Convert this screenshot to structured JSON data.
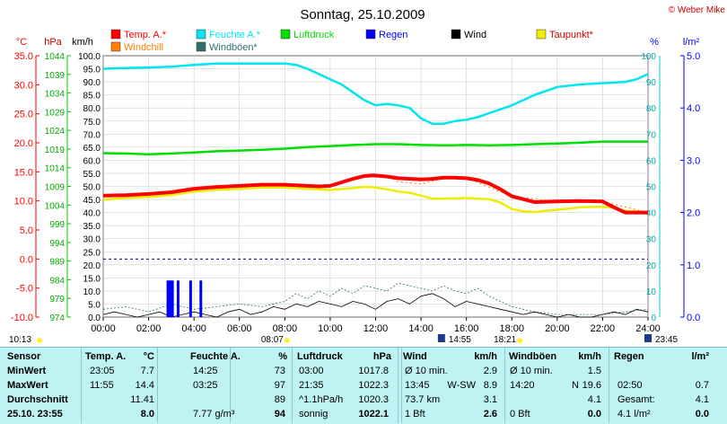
{
  "title": "Sonntag, 25.10.2009",
  "copyright": "© Weber Mike",
  "colors": {
    "temp": "#ff0000",
    "humidity": "#00e5ee",
    "pressure": "#00dd00",
    "rain": "#0000ff",
    "wind": "#000000",
    "dewpoint": "#eeee00",
    "windchill": "#ff7f00",
    "gust": "#2f6f6f"
  },
  "legend": [
    {
      "label": "Temp. A.*",
      "color": "#ff0000"
    },
    {
      "label": "Feuchte A.*",
      "color": "#00e5ee"
    },
    {
      "label": "Luftdruck",
      "color": "#00dd00"
    },
    {
      "label": "Regen",
      "color": "#0000ff"
    },
    {
      "label": "Wind",
      "color": "#000000"
    },
    {
      "label": "Taupunkt*",
      "color": "#eeee00"
    },
    {
      "label": "Windchill",
      "color": "#ff7f00"
    },
    {
      "label": "Windböen*",
      "color": "#2f6f6f"
    }
  ],
  "chart_data": {
    "type": "line",
    "title": "Sonntag, 25.10.2009",
    "x_ticks": [
      "00:00",
      "02:00",
      "04:00",
      "06:00",
      "08:00",
      "10:00",
      "12:00",
      "14:00",
      "16:00",
      "18:00",
      "20:00",
      "22:00",
      "24:00"
    ],
    "axes": {
      "celsius": {
        "unit": "°C",
        "ylim": [
          -10,
          35
        ],
        "ticks": [
          "35.0",
          "30.0",
          "25.0",
          "20.0",
          "15.0",
          "10.0",
          "5.0",
          "0.0",
          "-5.0",
          "-10.0"
        ]
      },
      "hpa": {
        "unit": "hPa",
        "ylim": [
          974,
          1044
        ],
        "ticks": [
          "1044",
          "1039",
          "1034",
          "1029",
          "1024",
          "1019",
          "1014",
          "1009",
          "1004",
          "999",
          "994",
          "989",
          "984",
          "979",
          "974"
        ]
      },
      "kmh": {
        "unit": "km/h",
        "ylim": [
          0,
          100
        ],
        "ticks": [
          "100.0",
          "95.0",
          "90.0",
          "85.0",
          "80.0",
          "75.0",
          "70.0",
          "65.0",
          "60.0",
          "55.0",
          "50.0",
          "45.0",
          "40.0",
          "35.0",
          "30.0",
          "25.0",
          "20.0",
          "15.0",
          "10.0",
          "5.0",
          "0.0"
        ]
      },
      "percent": {
        "unit": "%",
        "ylim": [
          0,
          100
        ],
        "ticks": [
          "100",
          "90",
          "80",
          "70",
          "60",
          "50",
          "40",
          "30",
          "20",
          "10",
          "0"
        ]
      },
      "rain": {
        "unit": "l/m²",
        "ylim": [
          0,
          5
        ],
        "ticks": [
          "5.0",
          "4.0",
          "3.0",
          "2.0",
          "1.0",
          "0.0"
        ]
      }
    },
    "series": [
      {
        "name": "Temp. A.*",
        "axis": "celsius",
        "x": [
          0,
          1,
          2,
          3,
          4,
          5,
          6,
          7,
          8,
          9,
          9.5,
          10,
          10.5,
          11,
          11.5,
          11.9,
          12.5,
          13,
          14,
          14.5,
          15,
          15.5,
          16,
          16.5,
          17,
          17.5,
          18,
          18.5,
          19,
          20,
          21,
          22,
          22.5,
          23,
          24
        ],
        "y": [
          10.9,
          11.0,
          11.2,
          11.5,
          12.1,
          12.4,
          12.6,
          12.8,
          12.8,
          12.6,
          12.5,
          12.6,
          13.2,
          13.8,
          14.3,
          14.4,
          14.2,
          13.9,
          13.7,
          13.8,
          14.0,
          14.0,
          13.9,
          13.6,
          13.0,
          12.0,
          10.8,
          10.3,
          9.8,
          9.9,
          10.0,
          9.9,
          8.9,
          8.0,
          8.0
        ]
      },
      {
        "name": "Feuchte A.*",
        "axis": "percent",
        "x": [
          0,
          1,
          2,
          3,
          4,
          5,
          6,
          7,
          8,
          8.5,
          9,
          10,
          10.5,
          11,
          11.5,
          12,
          12.5,
          13,
          13.5,
          14,
          14.5,
          15,
          15.5,
          16,
          16.5,
          17,
          17.5,
          18,
          18.5,
          19,
          20,
          21,
          22,
          23,
          23.5,
          24
        ],
        "y": [
          95,
          95.3,
          95.5,
          95.8,
          96.5,
          97,
          97,
          97,
          97,
          96.5,
          95,
          91,
          89,
          86,
          83,
          81,
          81.5,
          81,
          80,
          76,
          74,
          74,
          75,
          75.5,
          76.5,
          78,
          79.5,
          81,
          83,
          85,
          88,
          89,
          89.5,
          90,
          91,
          93
        ]
      },
      {
        "name": "Luftdruck",
        "axis": "hpa",
        "x": [
          0,
          1,
          2,
          3,
          4,
          5,
          6,
          7,
          8,
          9,
          10,
          11,
          12,
          13,
          14,
          15,
          16,
          17,
          18,
          19,
          20,
          21,
          22,
          23,
          24
        ],
        "y": [
          1017.9,
          1017.8,
          1017.6,
          1017.8,
          1018.1,
          1018.4,
          1018.6,
          1018.8,
          1019.1,
          1019.5,
          1019.8,
          1020.1,
          1020.3,
          1020.3,
          1020.1,
          1020.0,
          1020.1,
          1020.0,
          1020.1,
          1020.3,
          1020.5,
          1020.7,
          1021.0,
          1021.0,
          1021.0
        ]
      },
      {
        "name": "Taupunkt*",
        "axis": "celsius",
        "x": [
          0,
          1,
          2,
          3,
          4,
          5,
          6,
          7,
          8,
          9,
          10,
          11,
          11.5,
          12,
          12.5,
          13,
          13.5,
          14,
          14.5,
          15,
          16,
          17,
          17.5,
          18,
          18.5,
          19,
          20,
          21,
          22,
          22.5,
          23,
          24
        ],
        "y": [
          10.2,
          10.5,
          10.7,
          11.0,
          11.6,
          11.9,
          12.1,
          12.3,
          12.3,
          12.1,
          11.9,
          12.2,
          12.4,
          12.3,
          12.0,
          11.6,
          11.4,
          10.9,
          10.4,
          10.4,
          10.5,
          10.3,
          9.7,
          8.6,
          8.2,
          8.1,
          8.5,
          8.9,
          9.0,
          8.8,
          8.3,
          8.1
        ]
      },
      {
        "name": "Windchill",
        "axis": "celsius",
        "x": [
          0,
          2,
          4,
          6,
          8,
          10,
          11.9,
          12.5,
          13,
          14,
          15,
          16,
          18,
          20,
          22,
          24
        ],
        "y": [
          10.9,
          11.2,
          12.1,
          12.6,
          12.8,
          12.6,
          14.4,
          14.2,
          13.3,
          12.9,
          13.9,
          13.9,
          10.8,
          9.9,
          9.9,
          8.0
        ]
      },
      {
        "name": "Wind",
        "axis": "kmh",
        "x": [
          0,
          0.5,
          1,
          1.5,
          2,
          2.5,
          3,
          3.5,
          4,
          4.5,
          5,
          5.5,
          6,
          6.5,
          7,
          7.5,
          8,
          8.5,
          9,
          9.5,
          10,
          10.5,
          11,
          11.5,
          12,
          12.5,
          13,
          13.5,
          14,
          14.5,
          15,
          15.5,
          16,
          16.5,
          17,
          17.5,
          18,
          18.5,
          19,
          19.5,
          20,
          20.5,
          21,
          21.5,
          22,
          22.5,
          23,
          23.5,
          24
        ],
        "y": [
          1,
          2,
          1,
          0,
          1,
          2,
          0,
          1,
          2,
          1,
          0,
          2,
          3,
          1,
          2,
          4,
          3,
          5,
          4,
          6,
          5,
          4,
          6,
          5,
          3,
          6,
          7,
          5,
          8,
          9,
          7,
          4,
          6,
          5,
          4,
          3,
          2,
          1,
          2,
          1,
          0,
          1,
          0,
          0,
          1,
          2,
          1,
          3,
          2
        ]
      },
      {
        "name": "Windböen*",
        "axis": "kmh",
        "x": [
          0,
          1,
          2,
          3,
          4,
          5,
          6,
          7,
          8,
          8.5,
          9,
          9.5,
          10,
          10.5,
          11,
          11.5,
          12,
          12.5,
          13,
          13.5,
          14,
          14.5,
          15,
          15.5,
          16,
          16.5,
          17,
          17.5,
          18,
          18.5,
          19,
          20,
          21,
          22,
          23,
          24
        ],
        "y": [
          3,
          4,
          2,
          5,
          3,
          4,
          5,
          4,
          6,
          9,
          7,
          10,
          8,
          11,
          9,
          12,
          11,
          10,
          13,
          12,
          11,
          10,
          12,
          10,
          9,
          11,
          8,
          6,
          4,
          3,
          2,
          1,
          1,
          1,
          2,
          3
        ]
      },
      {
        "name": "Regen",
        "axis": "rain",
        "type": "bar",
        "x": [
          2.85,
          2.95,
          3.05,
          3.3,
          3.85,
          4.3
        ],
        "y": [
          0.7,
          0.7,
          0.7,
          0.7,
          0.7,
          0.7
        ]
      }
    ],
    "reference_line": {
      "axis": "celsius",
      "value": 0.0,
      "style": "dashed",
      "color": "#0000aa"
    },
    "markers": [
      {
        "label": "10:13",
        "x": 0
      },
      {
        "label": "08:07",
        "x": 8.1
      },
      {
        "label": "14:55",
        "x": 14.9
      },
      {
        "label": "18:21",
        "x": 18.35
      },
      {
        "label": "23:45",
        "x": 24
      }
    ]
  },
  "table": {
    "rows": [
      {
        "label": "Sensor",
        "temp_unit": "°C",
        "hum_unit": "%",
        "pres_unit": "hPa",
        "wind_unit": "km/h",
        "gust_unit": "km/h",
        "rain_unit": "l/m²"
      },
      {
        "label": "MinWert",
        "t_time": "23:05",
        "t_val": "7.7",
        "h_time": "14:25",
        "h_val": "73",
        "p_time": "03:00",
        "p_val": "1017.8",
        "w_time": "Ø 10 min.",
        "w_val": "2.9",
        "g_time": "Ø 10 min.",
        "g_val": "1.5",
        "r_time": "",
        "r_val": ""
      },
      {
        "label": "MaxWert",
        "t_time": "11:55",
        "t_val": "14.4",
        "h_time": "03:25",
        "h_val": "97",
        "p_time": "21:35",
        "p_val": "1022.3",
        "w_time": "13:45",
        "w_dir": "W-SW",
        "w_val": "8.9",
        "g_time": "14:20",
        "g_dir": "N",
        "g_val": "19.6",
        "r_time": "02:50",
        "r_val": "0.7"
      },
      {
        "label": "Durchschnitt",
        "t_time": "",
        "t_val": "11.41",
        "h_time": "",
        "h_val": "89",
        "p_time": "^1.1hPa/h",
        "p_val": "1020.3",
        "w_time": "73.7 km",
        "w_val": "3.1",
        "g_time": "",
        "g_val": "4.1",
        "r_time": "Gesamt:",
        "r_val": "4.1"
      },
      {
        "label": "25.10. 23:55",
        "t_time": "",
        "t_val": "8.0",
        "h_time": "7.77 g/m³",
        "h_val": "94",
        "p_time": "sonnig",
        "p_val": "1022.1",
        "w_time": "1 Bft",
        "w_val": "2.6",
        "g_time": "0 Bft",
        "g_val": "0.0",
        "r_time": "4.1 l/m²",
        "r_val": "0.0"
      }
    ],
    "headers": {
      "temp": "Temp. A.",
      "hum": "Feuchte A.",
      "pres": "Luftdruck",
      "wind": "Wind",
      "gust": "Windböen",
      "rain": "Regen"
    }
  }
}
